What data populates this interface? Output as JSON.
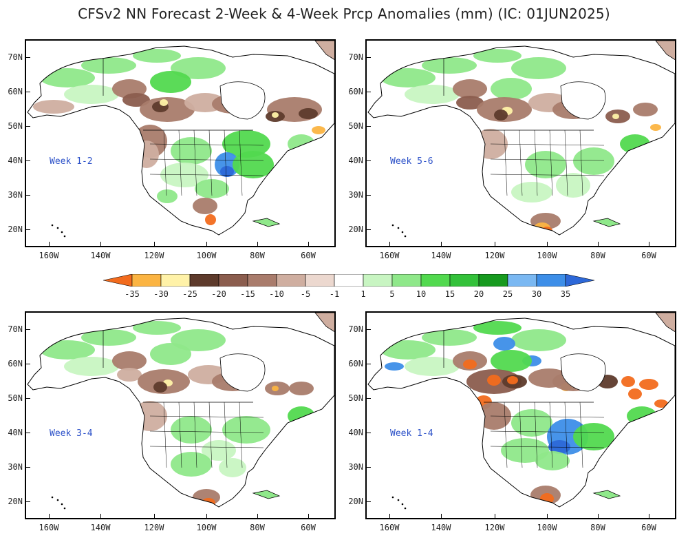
{
  "title": "CFSv2 NN Forecast 2-Week & 4-Week Prcp Anomalies (mm) (IC: 01JUN2025)",
  "panels": [
    {
      "label": "Week 1-2",
      "variant": "w12"
    },
    {
      "label": "Week 5-6",
      "variant": "w56"
    },
    {
      "label": "Week 3-4",
      "variant": "w34"
    },
    {
      "label": "Week 1-4",
      "variant": "w14"
    }
  ],
  "lat_labels": [
    "70N",
    "60N",
    "50N",
    "40N",
    "30N",
    "20N"
  ],
  "lon_labels": [
    "160W",
    "140W",
    "120W",
    "100W",
    "80W",
    "60W"
  ],
  "colorbar": {
    "labels": [
      "-35",
      "-30",
      "-25",
      "-20",
      "-15",
      "-10",
      "-5",
      "-1",
      "1",
      "5",
      "10",
      "15",
      "20",
      "25",
      "30",
      "35"
    ],
    "colors": [
      "#f26b1d",
      "#fbb442",
      "#fff2a8",
      "#5e3b2c",
      "#8b5d4e",
      "#a97c6c",
      "#cfaea0",
      "#ecd8cf",
      "#ffffff",
      "#c8f5c2",
      "#8fe88a",
      "#52d94f",
      "#33c13a",
      "#179a1f",
      "#7ab8f2",
      "#3d8ee8",
      "#2d68d8"
    ]
  }
}
